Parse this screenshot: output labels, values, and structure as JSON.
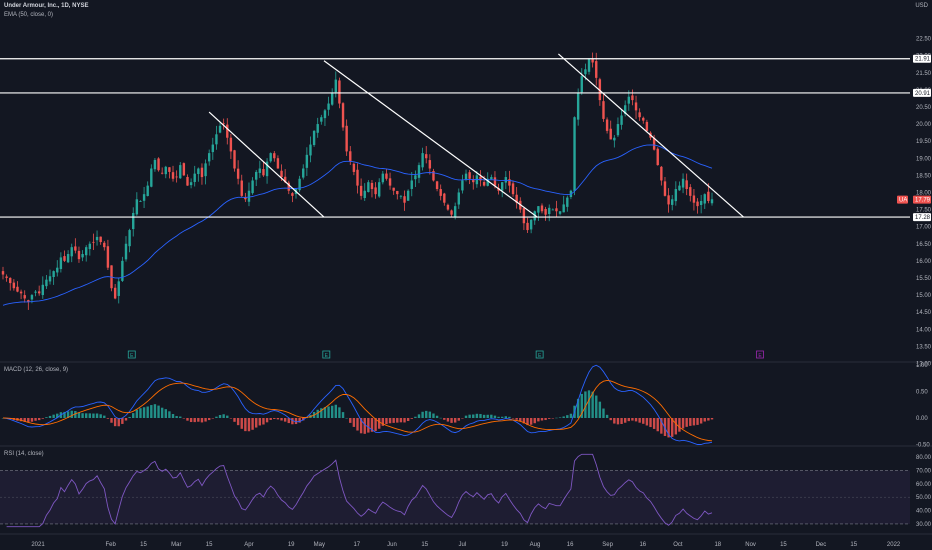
{
  "header": {
    "symbol_title": "Under Armour, Inc., 1D, NYSE",
    "ema_label": "EMA (50, close, 0)",
    "macd_label": "MACD (12, 26, close, 9)",
    "rsi_label": "RSI (14, close)",
    "currency": "USD"
  },
  "colors": {
    "background": "#131722",
    "up": "#26a69a",
    "down": "#ef5350",
    "ema": "#2962ff",
    "macd_line": "#2962ff",
    "signal_line": "#ff6d00",
    "rsi_line": "#7e57c2",
    "trendline": "#ffffff",
    "last_price_tag": "#ef5350",
    "earnings_marker": "#26a69a",
    "future_earnings_marker": "#9c27b0"
  },
  "chart_data": [
    {
      "type": "candlestick",
      "title": "Under Armour, Inc., 1D, NYSE",
      "currency": "USD",
      "y_ticks": [
        13.0,
        13.5,
        14.0,
        14.5,
        15.0,
        15.5,
        16.0,
        16.5,
        17.0,
        17.5,
        18.0,
        18.5,
        19.0,
        19.5,
        20.0,
        20.5,
        21.0,
        21.5,
        22.0,
        22.5
      ],
      "ylim": [
        12.75,
        22.75
      ],
      "x_ticks": [
        "2021",
        "Feb",
        "15",
        "Mar",
        "15",
        "Apr",
        "19",
        "May",
        "17",
        "Jun",
        "15",
        "Jul",
        "19",
        "Aug",
        "16",
        "Sep",
        "16",
        "Oct",
        "18",
        "Nov",
        "15",
        "Dec",
        "15",
        "2022"
      ],
      "price_tags": [
        {
          "value": "21.91",
          "type": "horizontal-line"
        },
        {
          "value": "20.91",
          "type": "horizontal-line"
        },
        {
          "value": "17.79",
          "type": "last-price"
        },
        {
          "value": "17.28",
          "type": "horizontal-line"
        }
      ],
      "last_label": "UA",
      "horizontal_lines": [
        21.91,
        20.91,
        17.28
      ],
      "trendlines": [
        {
          "from": [
            "2021-03-15",
            20.35
          ],
          "to": [
            "2021-05-03",
            17.28
          ]
        },
        {
          "from": [
            "2021-05-03",
            21.85
          ],
          "to": [
            "2021-08-02",
            17.28
          ]
        },
        {
          "from": [
            "2021-08-11",
            22.05
          ],
          "to": [
            "2021-10-29",
            17.28
          ]
        }
      ],
      "earnings_markers": [
        {
          "date": "2021-02-10",
          "label": "E"
        },
        {
          "date": "2021-05-04",
          "label": "E"
        },
        {
          "date": "2021-08-03",
          "label": "E"
        },
        {
          "date": "2021-11-05",
          "label": "E"
        }
      ],
      "close": [
        15.6,
        15.5,
        15.35,
        15.2,
        15.1,
        15.05,
        14.9,
        14.8,
        15.0,
        15.1,
        15.05,
        15.3,
        15.45,
        15.55,
        15.7,
        15.8,
        16.1,
        16.0,
        16.2,
        16.4,
        16.3,
        16.05,
        16.2,
        16.4,
        16.5,
        16.55,
        16.7,
        16.55,
        16.4,
        15.8,
        15.2,
        14.9,
        15.4,
        16.0,
        16.5,
        16.9,
        17.4,
        17.8,
        17.75,
        17.95,
        18.2,
        18.7,
        18.95,
        18.65,
        18.55,
        18.75,
        18.6,
        18.4,
        18.45,
        18.8,
        18.5,
        18.2,
        18.3,
        18.55,
        18.7,
        18.45,
        18.85,
        19.15,
        19.4,
        19.7,
        19.95,
        20.0,
        19.6,
        19.2,
        18.7,
        18.4,
        17.9,
        17.8,
        18.05,
        18.35,
        18.6,
        18.7,
        18.5,
        18.9,
        19.15,
        19.0,
        18.7,
        18.45,
        18.3,
        18.05,
        17.9,
        18.1,
        18.4,
        18.7,
        19.1,
        19.4,
        19.8,
        20.0,
        20.2,
        20.4,
        20.6,
        20.9,
        21.3,
        20.6,
        19.9,
        19.2,
        18.9,
        18.6,
        18.2,
        17.9,
        18.05,
        18.3,
        18.1,
        17.95,
        18.3,
        18.55,
        18.4,
        18.2,
        18.05,
        17.95,
        17.9,
        17.7,
        18.05,
        18.35,
        18.5,
        18.8,
        19.15,
        19.0,
        18.7,
        18.35,
        18.1,
        17.9,
        17.7,
        17.5,
        17.35,
        17.6,
        18.0,
        18.35,
        18.55,
        18.4,
        18.3,
        18.5,
        18.35,
        18.2,
        18.4,
        18.45,
        18.2,
        18.05,
        18.3,
        18.45,
        18.2,
        17.95,
        17.7,
        17.5,
        17.1,
        16.9,
        17.2,
        17.45,
        17.6,
        17.45,
        17.35,
        17.55,
        17.5,
        17.45,
        17.45,
        17.65,
        17.85,
        18.05,
        20.2,
        20.9,
        21.4,
        21.6,
        21.9,
        21.8,
        21.35,
        20.7,
        20.15,
        19.8,
        19.55,
        19.6,
        20.0,
        20.25,
        20.55,
        20.8,
        20.7,
        20.4,
        20.2,
        20.1,
        19.8,
        19.6,
        19.25,
        18.8,
        18.35,
        17.9,
        17.65,
        17.8,
        18.1,
        18.2,
        18.4,
        18.1,
        17.9,
        17.7,
        17.6,
        17.75,
        17.95,
        17.75,
        17.8
      ],
      "ema50_note": "EMA 50 overlay of close",
      "macd": {
        "labels": [
          "MACD",
          "Signal",
          "Histogram"
        ],
        "y_ticks": [
          1.0,
          0.5,
          0.0,
          -0.5
        ],
        "ylim": [
          -0.7,
          1.2
        ]
      },
      "rsi": {
        "y_ticks": [
          80.0,
          70.0,
          60.0,
          50.0,
          40.0,
          30.0
        ],
        "ylim": [
          27,
          83
        ],
        "band": [
          30,
          70
        ]
      }
    }
  ]
}
